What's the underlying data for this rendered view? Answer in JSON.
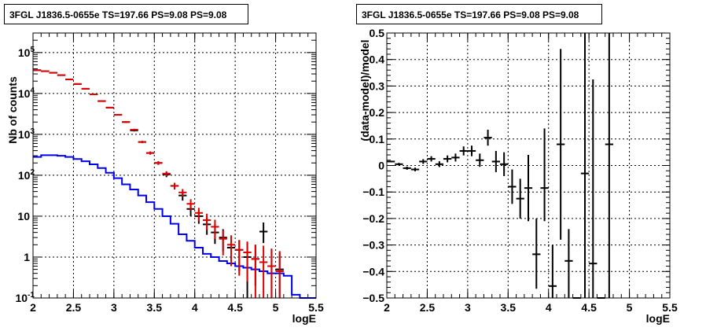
{
  "chart_data": [
    {
      "type": "scatter",
      "title": "3FGL J1836.5-0655e TS=197.66 PS=9.08 PS=9.08",
      "xlabel": "logE",
      "ylabel": "Nb of counts",
      "yscale": "log",
      "xlim": [
        2,
        5.5
      ],
      "ylim": [
        0.1,
        300000
      ],
      "grid": true,
      "x_ticks": [
        "2",
        "2.5",
        "3",
        "3.5",
        "4",
        "4.5",
        "5",
        "5.5"
      ],
      "y_ticks": [
        {
          "base": "10",
          "exp": "-1"
        },
        {
          "base": "1",
          "exp": ""
        },
        {
          "base": "10",
          "exp": ""
        },
        {
          "base": "10",
          "exp": "2"
        },
        {
          "base": "10",
          "exp": "3"
        },
        {
          "base": "10",
          "exp": "4"
        },
        {
          "base": "10",
          "exp": "5"
        }
      ],
      "bin_edges": [
        2.0,
        2.1,
        2.2,
        2.3,
        2.4,
        2.5,
        2.6,
        2.7,
        2.8,
        2.9,
        3.0,
        3.1,
        3.2,
        3.3,
        3.4,
        3.5,
        3.6,
        3.7,
        3.8,
        3.9,
        4.0,
        4.1,
        4.2,
        4.3,
        4.4,
        4.5,
        4.6,
        4.7,
        4.8,
        4.9,
        5.0,
        5.1,
        5.2,
        5.3,
        5.4,
        5.5
      ],
      "series": [
        {
          "color": "#0000ee",
          "style": "step",
          "values": [
            280,
            310,
            310,
            300,
            280,
            250,
            220,
            185,
            150,
            115,
            85,
            60,
            45,
            32,
            22,
            15,
            10,
            6.5,
            3.6,
            2.5,
            1.7,
            1.2,
            1.0,
            0.8,
            0.7,
            0.6,
            0.55,
            0.5,
            0.45,
            0.4,
            0.4,
            0.35,
            0.12,
            0.1,
            0.1
          ]
        },
        {
          "color": "#000000",
          "style": "errorbar",
          "x": [
            2.05,
            2.15,
            2.25,
            2.35,
            2.45,
            2.55,
            2.65,
            2.75,
            2.85,
            2.95,
            3.05,
            3.15,
            3.25,
            3.35,
            3.45,
            3.55,
            3.65,
            3.75,
            3.85,
            3.95,
            4.05,
            4.15,
            4.25,
            4.35,
            4.45,
            4.55,
            4.65,
            4.75,
            4.85,
            4.95,
            5.05
          ],
          "y": [
            37000,
            35000,
            32000,
            28000,
            22000,
            17000,
            13000,
            9500,
            6500,
            4500,
            3000,
            2000,
            1250,
            650,
            350,
            200,
            105,
            55,
            32,
            15,
            10,
            6.3,
            4.0,
            3.0,
            1.7,
            1.5,
            1.0,
            0.9,
            4.2,
            0.6,
            0.5
          ],
          "lo": [
            36500,
            34500,
            31500,
            27500,
            21600,
            16700,
            12700,
            9300,
            6300,
            4350,
            2900,
            1900,
            1180,
            610,
            320,
            180,
            90,
            45,
            24,
            10,
            6.5,
            3.5,
            2.1,
            1.4,
            0.7,
            0.45,
            0.1,
            0.2,
            2.2,
            0.1,
            0.1
          ],
          "hi": [
            37500,
            35500,
            32500,
            28500,
            22400,
            17300,
            13300,
            9700,
            6700,
            4650,
            3100,
            2100,
            1320,
            690,
            380,
            220,
            120,
            65,
            40,
            20,
            14,
            9.5,
            6.5,
            4.8,
            3.0,
            2.6,
            2.2,
            2.0,
            7.0,
            1.6,
            1.3
          ]
        },
        {
          "color": "#dd0000",
          "style": "errorbar",
          "x": [
            2.05,
            2.15,
            2.25,
            2.35,
            2.45,
            2.55,
            2.65,
            2.75,
            2.85,
            2.95,
            3.05,
            3.15,
            3.25,
            3.35,
            3.45,
            3.55,
            3.65,
            3.75,
            3.85,
            3.95,
            4.05,
            4.15,
            4.25,
            4.35,
            4.45,
            4.55,
            4.65,
            4.75,
            4.85,
            4.95,
            5.05
          ],
          "y": [
            37000,
            35000,
            32000,
            28000,
            22000,
            17000,
            13000,
            9500,
            6500,
            4500,
            3000,
            2000,
            1300,
            650,
            350,
            200,
            110,
            55,
            38,
            20,
            12,
            8.0,
            5.5,
            2.8,
            2.0,
            1.5,
            1.3,
            0.9,
            0.75,
            0.6,
            0.45
          ],
          "lo": [
            36500,
            34500,
            31500,
            27500,
            21600,
            16700,
            12700,
            9300,
            6300,
            4350,
            2900,
            1900,
            1230,
            610,
            320,
            180,
            95,
            45,
            30,
            14,
            7.5,
            4.6,
            2.8,
            1.1,
            0.6,
            0.35,
            0.25,
            0.1,
            0.1,
            0.1,
            0.1
          ],
          "hi": [
            37500,
            35500,
            32500,
            28500,
            22400,
            17300,
            13300,
            9700,
            6700,
            4650,
            3100,
            2100,
            1370,
            690,
            380,
            220,
            125,
            65,
            46,
            26,
            16,
            11.5,
            8.2,
            4.5,
            3.4,
            2.6,
            2.4,
            2.0,
            1.9,
            1.6,
            1.4
          ]
        }
      ]
    },
    {
      "type": "scatter",
      "title": "3FGL J1836.5-0655e TS=197.66 PS=9.08 PS=9.08",
      "xlabel": "logE",
      "ylabel": "(data-model)/model",
      "xlim": [
        2,
        5.5
      ],
      "ylim": [
        -0.5,
        0.5
      ],
      "grid": true,
      "x_ticks": [
        "2",
        "2.5",
        "3",
        "3.5",
        "4",
        "4.5",
        "5",
        "5.5"
      ],
      "y_ticks": [
        "−0.5",
        "−0.4",
        "−0.3",
        "−0.2",
        "−0.1",
        "0",
        "0.1",
        "0.2",
        "0.3",
        "0.4",
        "0.5"
      ],
      "series": [
        {
          "color": "#000000",
          "style": "errorbar",
          "x": [
            2.05,
            2.15,
            2.25,
            2.35,
            2.45,
            2.55,
            2.65,
            2.75,
            2.85,
            2.95,
            3.05,
            3.15,
            3.25,
            3.35,
            3.45,
            3.55,
            3.65,
            3.75,
            3.85,
            3.95,
            4.05,
            4.15,
            4.25,
            4.35,
            4.45,
            4.55,
            4.65,
            4.75
          ],
          "y": [
            0.015,
            0.005,
            -0.01,
            -0.015,
            0.015,
            0.025,
            0.005,
            0.025,
            0.03,
            0.055,
            0.055,
            0.02,
            0.105,
            0.015,
            0.005,
            -0.08,
            -0.125,
            -0.085,
            -0.335,
            -0.085,
            -0.455,
            0.08,
            -0.36,
            -0.5,
            -0.03,
            -0.37,
            -0.5,
            0.08
          ],
          "lo": [
            0.012,
            0.0,
            -0.016,
            -0.022,
            0.006,
            0.015,
            -0.006,
            0.012,
            0.015,
            0.038,
            0.035,
            -0.005,
            0.075,
            -0.025,
            -0.04,
            -0.145,
            -0.2,
            -0.21,
            -0.465,
            -0.21,
            -0.5,
            -0.28,
            -0.5,
            -0.5,
            -0.5,
            -0.5,
            -0.5,
            -0.5
          ],
          "hi": [
            0.018,
            0.01,
            -0.004,
            -0.008,
            0.024,
            0.035,
            0.016,
            0.038,
            0.045,
            0.072,
            0.075,
            0.045,
            0.135,
            0.055,
            0.05,
            -0.015,
            -0.05,
            0.04,
            -0.2,
            0.14,
            -0.3,
            0.44,
            -0.24,
            -0.5,
            0.5,
            0.325,
            -0.5,
            0.5
          ]
        }
      ]
    }
  ]
}
